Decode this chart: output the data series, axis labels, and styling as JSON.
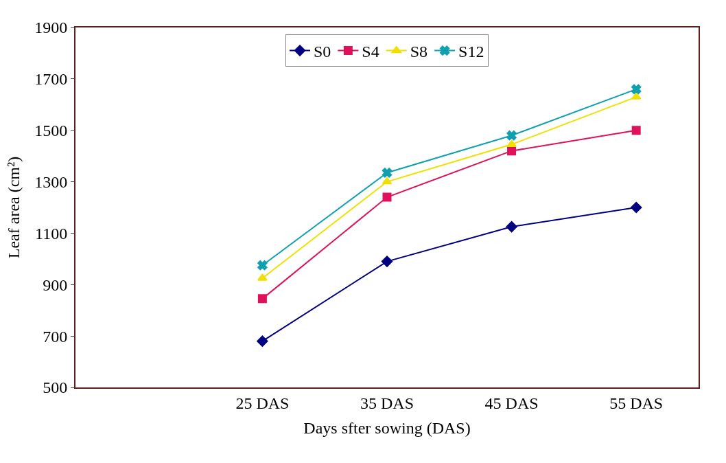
{
  "chart_data": {
    "type": "line",
    "xlabel": "Days sfter sowing (DAS)",
    "ylabel": "Leaf area (cm²)",
    "categories": [
      null,
      "25 DAS",
      "35 DAS",
      "45 DAS",
      "55 DAS"
    ],
    "series": [
      {
        "name": "S0",
        "color": "#000080",
        "marker": "diamond",
        "values": [
          null,
          680,
          990,
          1125,
          1200
        ]
      },
      {
        "name": "S4",
        "color": "#e0105a",
        "marker": "square",
        "values": [
          null,
          845,
          1240,
          1420,
          1500
        ]
      },
      {
        "name": "S8",
        "color": "#f0e000",
        "marker": "triangle",
        "values": [
          null,
          925,
          1300,
          1445,
          1630
        ]
      },
      {
        "name": "S12",
        "color": "#10a0b0",
        "marker": "cross",
        "values": [
          null,
          975,
          1335,
          1480,
          1660
        ]
      }
    ],
    "ylim": [
      500,
      1900
    ],
    "yticks": [
      500,
      700,
      900,
      1100,
      1300,
      1500,
      1700,
      1900
    ],
    "grid": false,
    "legend": "top",
    "line_style": "solid"
  }
}
